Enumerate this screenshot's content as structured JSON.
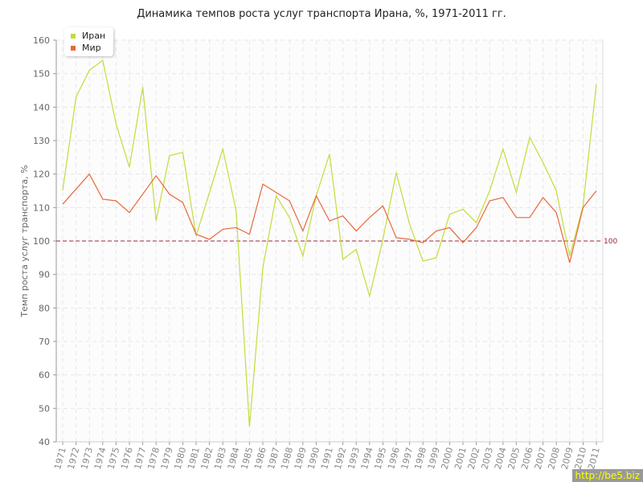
{
  "chart_data": {
    "type": "line",
    "title": "Динамика темпов роста услуг транспорта Ирана, %, 1971-2011 гг.",
    "xlabel": "",
    "ylabel": "Темп роста услуг транспорта, %",
    "ylim": [
      40,
      160
    ],
    "yticks": [
      40,
      50,
      60,
      70,
      80,
      90,
      100,
      110,
      120,
      130,
      140,
      150,
      160
    ],
    "grid": true,
    "legend_position": "top-left",
    "reference_line": {
      "value": 100,
      "label": "100",
      "color": "#9b2335"
    },
    "x": [
      "1971",
      "1972",
      "1973",
      "1974",
      "1975",
      "1976",
      "1977",
      "1978",
      "1979",
      "1980",
      "1981",
      "1982",
      "1983",
      "1984",
      "1985",
      "1986",
      "1987",
      "1988",
      "1989",
      "1990",
      "1991",
      "1992",
      "1993",
      "1994",
      "1995",
      "1996",
      "1997",
      "1998",
      "1999",
      "2000",
      "2001",
      "2002",
      "2003",
      "2004",
      "2005",
      "2006",
      "2007",
      "2008",
      "2009",
      "2010",
      "2011"
    ],
    "series": [
      {
        "name": "Иран",
        "color": "#c2dd3c",
        "values": [
          115.1,
          143,
          151,
          154,
          135,
          122,
          146,
          106,
          125.5,
          126.5,
          101.5,
          114.5,
          127.5,
          109,
          44.5,
          92,
          113.5,
          107,
          95.5,
          113.5,
          126,
          94.5,
          97.5,
          83.5,
          100.5,
          120.5,
          105,
          94,
          95,
          108,
          109.5,
          105.5,
          115,
          127.5,
          114.5,
          131,
          123.5,
          115,
          95.5,
          110.5,
          147
        ]
      },
      {
        "name": "Мир",
        "color": "#e8683a",
        "values": [
          111,
          115.5,
          120,
          112.5,
          112,
          108.5,
          114,
          119.5,
          114,
          111.5,
          102,
          100.5,
          103.5,
          104,
          102,
          117,
          114.5,
          112,
          103,
          113.5,
          106,
          107.5,
          103,
          107,
          110.5,
          101,
          100.5,
          99.5,
          103,
          104,
          99.5,
          104,
          112,
          113,
          107,
          107,
          113,
          108.5,
          93.5,
          110,
          115
        ]
      }
    ]
  },
  "watermark": "http://be5.biz"
}
